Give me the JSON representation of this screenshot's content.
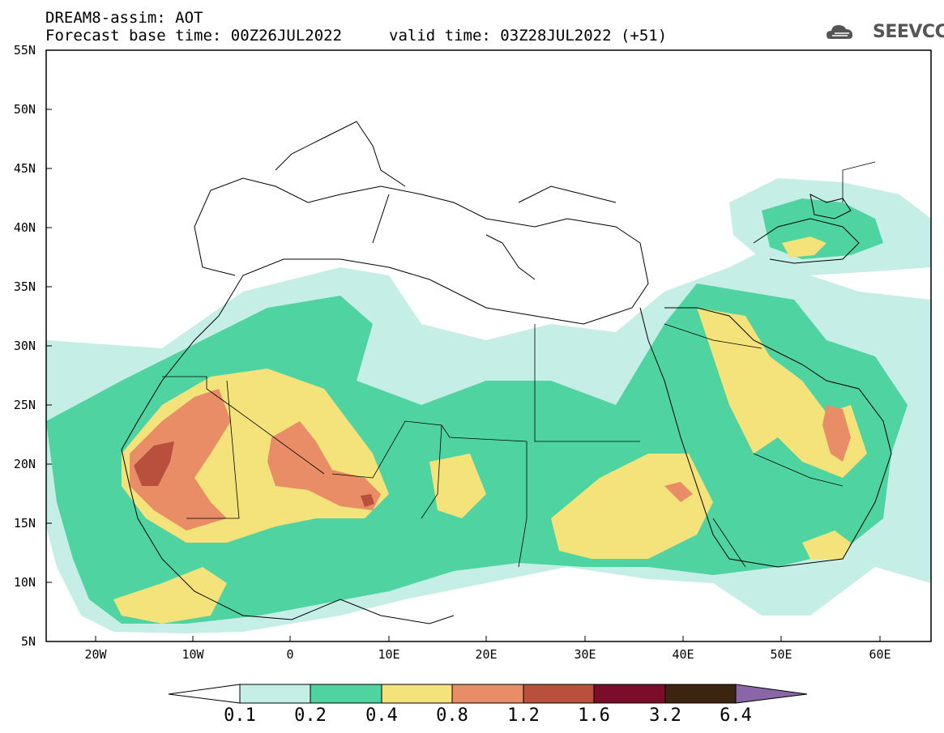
{
  "header": {
    "title": "DREAM8-assim: AOT",
    "base_time": "Forecast base time: 00Z26JUL2022",
    "valid_time": "valid time: 03Z28JUL2022 (+51)",
    "logo_text": "SEEVCCC"
  },
  "axes": {
    "lat_labels": [
      "55N",
      "50N",
      "45N",
      "40N",
      "35N",
      "30N",
      "25N",
      "20N",
      "15N",
      "10N",
      "5N"
    ],
    "lon_labels": [
      "20W",
      "10W",
      "0",
      "10E",
      "20E",
      "30E",
      "40E",
      "50E",
      "60E"
    ]
  },
  "colorbar": {
    "labels": [
      "0.1",
      "0.2",
      "0.4",
      "0.8",
      "1.2",
      "1.6",
      "3.2",
      "6.4"
    ],
    "colors": [
      "#c4eee6",
      "#4fd3a0",
      "#f4e27a",
      "#e98d66",
      "#b8503d",
      "#7b0c2a",
      "#3b2410",
      "#8a66a8"
    ]
  }
}
